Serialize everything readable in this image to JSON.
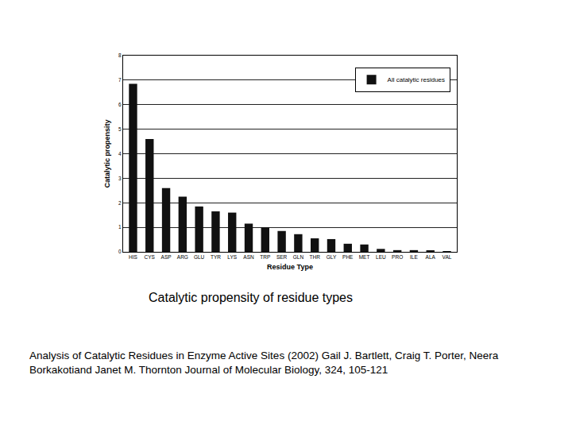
{
  "chart_data": {
    "type": "bar",
    "x_label": "Residue Type",
    "y_label": "Catalytic propensity",
    "categories": [
      "HIS",
      "CYS",
      "ASP",
      "ARG",
      "GLU",
      "TYR",
      "LYS",
      "ASN",
      "TRP",
      "SER",
      "GLN",
      "THR",
      "GLY",
      "PHE",
      "MET",
      "LEU",
      "PRO",
      "ILE",
      "ALA",
      "VAL"
    ],
    "series": [
      {
        "name": "All catalytic residues",
        "color": "#111111",
        "values": [
          6.85,
          4.6,
          2.6,
          2.25,
          1.85,
          1.65,
          1.6,
          1.15,
          1.0,
          0.85,
          0.72,
          0.55,
          0.52,
          0.33,
          0.3,
          0.12,
          0.07,
          0.07,
          0.04,
          0.03
        ]
      }
    ],
    "ylim": [
      0,
      8
    ],
    "yticks": [
      0,
      1,
      2,
      3,
      4,
      5,
      6,
      7,
      8
    ],
    "grid": true,
    "legend": "top right",
    "annotations": [
      {
        "text": [
          "Catalytic propensity of residue types"
        ]
      },
      {
        "text": [
          "Analysis of Catalytic Residues in Enzyme Active Sites (2002) Gail J. Bartlett, Craig T. Porter, Neera",
          "Borkakotiand Janet M. Thornton Journal of Molecular Biology, 324, 105-121"
        ]
      }
    ]
  }
}
